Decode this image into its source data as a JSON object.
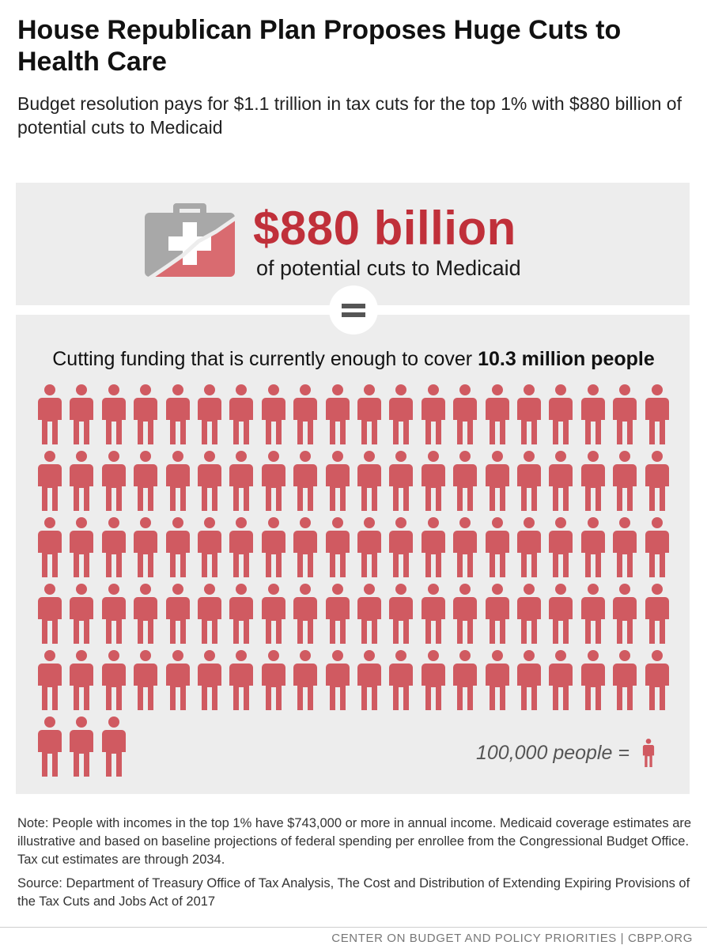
{
  "header": {
    "title": "House Republican Plan Proposes Huge Cuts to Health Care",
    "subtitle": "Budget resolution pays for $1.1 trillion in tax cuts for the top 1% with $880 billion of potential cuts to Medicaid"
  },
  "highlight": {
    "amount": "$880 billion",
    "description": "of potential cuts to Medicaid",
    "icon": "first-aid-kit-icon"
  },
  "equals_icon": "equals-icon",
  "coverage": {
    "text_prefix": "Cutting funding that is currently enough to cover ",
    "text_strong": "10.3 million people",
    "people_icons": 103,
    "icons_per_row": 20,
    "legend_label": "100,000 people =",
    "legend_icon": "person-icon"
  },
  "notes": {
    "note": "Note: People with incomes in the top 1% have $743,000 or more in annual income. Medicaid coverage estimates are illustrative and based on baseline projections of federal spending per enrollee from the Congressional Budget Office. Tax cut estimates are through 2034.",
    "source": "Source: Department of Treasury Office of Tax Analysis, The Cost and Distribution of Extending Expiring Provisions of the Tax Cuts and Jobs Act of 2017"
  },
  "footer": {
    "text": "CENTER ON BUDGET AND POLICY PRIORITIES | CBPP.ORG"
  },
  "colors": {
    "accent_red": "#c0303a",
    "person_red": "#d05a61",
    "panel_gray": "#ededed",
    "kit_gray": "#a8a8a8"
  }
}
